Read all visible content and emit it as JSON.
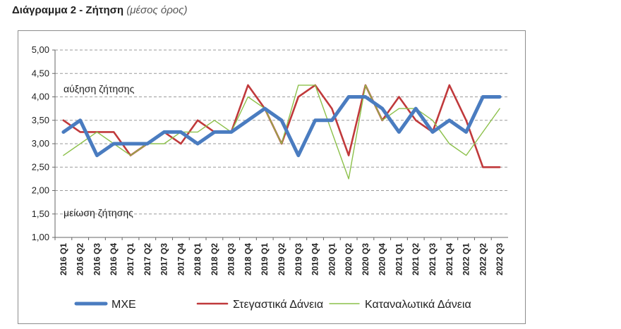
{
  "page": {
    "title_main": "Διάγραμμα 2 - Ζήτηση",
    "title_sub": "(μέσος όρος)"
  },
  "chart_data": {
    "type": "line",
    "title": "Διάγραμμα 2 - Ζήτηση (μέσος όρος)",
    "xlabel": "",
    "ylabel": "",
    "ylim": [
      1.0,
      5.0
    ],
    "yticks": [
      "1,00",
      "1,50",
      "2,00",
      "2,50",
      "3,00",
      "3,50",
      "4,00",
      "4,50",
      "5,00"
    ],
    "ytick_values": [
      1.0,
      1.5,
      2.0,
      2.5,
      3.0,
      3.5,
      4.0,
      4.5,
      5.0
    ],
    "grid": "horizontal-dashed",
    "legend_position": "bottom",
    "categories": [
      "2016 Q1",
      "2016 Q2",
      "2016 Q3",
      "2016 Q4",
      "2017 Q1",
      "2017 Q2",
      "2017 Q3",
      "2017 Q4",
      "2018 Q1",
      "2018 Q2",
      "2018 Q3",
      "2018 Q4",
      "2019 Q1",
      "2019 Q2",
      "2019 Q3",
      "2019 Q4",
      "2020 Q1",
      "2020 Q2",
      "2020 Q3",
      "2020 Q4",
      "2021 Q1",
      "2021 Q2",
      "2021 Q3",
      "2021 Q4",
      "2022 Q1",
      "2022 Q2",
      "2022 Q3"
    ],
    "annotations": [
      {
        "text": "αύξηση ζήτησης",
        "y": 4.1
      },
      {
        "text": "μείωση ζήτησης",
        "y": 1.45
      }
    ],
    "series": [
      {
        "name": "ΜΧΕ",
        "color": "#4a7cc0",
        "values": [
          3.25,
          3.5,
          2.75,
          3.0,
          3.0,
          3.0,
          3.25,
          3.25,
          3.0,
          3.25,
          3.25,
          3.5,
          3.75,
          3.5,
          2.75,
          3.5,
          3.5,
          4.0,
          4.0,
          3.75,
          3.25,
          3.75,
          3.25,
          3.5,
          3.25,
          4.0,
          4.0
        ]
      },
      {
        "name": "Στεγαστικά Δάνεια",
        "color": "#c0393b",
        "values": [
          3.5,
          3.25,
          3.25,
          3.25,
          2.75,
          3.0,
          3.25,
          3.0,
          3.5,
          3.25,
          3.25,
          4.25,
          3.75,
          3.0,
          4.0,
          4.25,
          3.75,
          2.75,
          4.25,
          3.5,
          4.0,
          3.5,
          3.25,
          4.25,
          3.5,
          2.5,
          2.5
        ]
      },
      {
        "name": "Καταναλωτικά Δάνεια",
        "color": "#8cc04a",
        "values": [
          2.75,
          3.0,
          3.25,
          3.0,
          2.75,
          3.0,
          3.0,
          3.25,
          3.25,
          3.5,
          3.25,
          4.0,
          3.75,
          3.0,
          4.25,
          4.25,
          3.25,
          2.25,
          4.25,
          3.5,
          3.75,
          3.75,
          3.5,
          3.0,
          2.75,
          3.25,
          3.75
        ]
      }
    ]
  }
}
